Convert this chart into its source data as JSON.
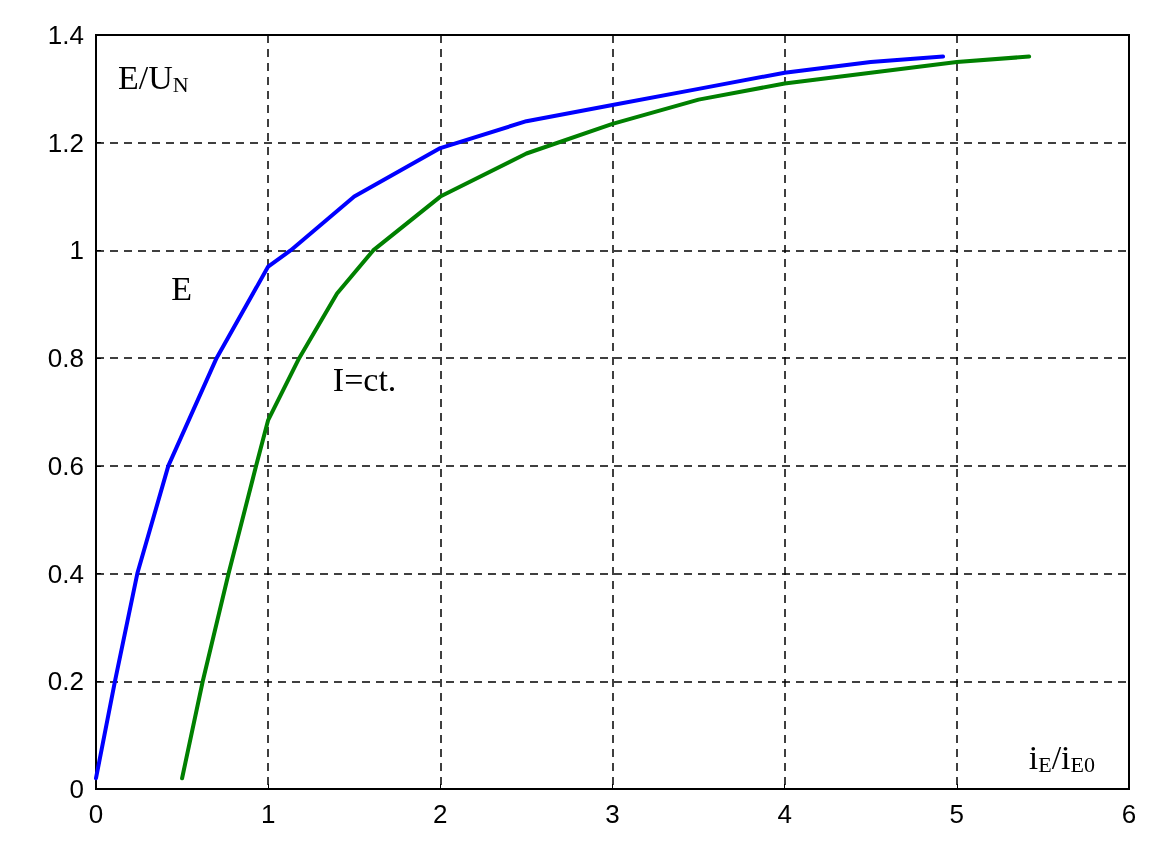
{
  "chart_data": {
    "type": "line",
    "xlabel": "i$_{E}$/i$_{E0}$",
    "ylabel": "E/U$_{N}$",
    "xlim": [
      0,
      6
    ],
    "xticks": [
      0,
      1,
      2,
      3,
      4,
      5,
      6
    ],
    "ylim": [
      0,
      1.4
    ],
    "yticks": [
      0,
      0.2,
      0.4,
      0.6,
      0.8,
      1,
      1.2,
      1.4
    ],
    "grid": true,
    "line_style": "solid",
    "marker": "none",
    "series": [
      {
        "color": "#0000ff",
        "x": [
          0,
          0.11,
          0.24,
          0.42,
          0.7,
          1,
          1.13,
          1.5,
          2,
          2.5,
          3,
          3.5,
          4,
          4.5,
          4.92
        ],
        "values": [
          0.02,
          0.2,
          0.4,
          0.6,
          0.8,
          0.97,
          1.0,
          1.1,
          1.19,
          1.24,
          1.27,
          1.3,
          1.33,
          1.35,
          1.36
        ]
      },
      {
        "color": "#008000",
        "x": [
          0.5,
          0.62,
          0.77,
          0.93,
          1,
          1.18,
          1.4,
          1.61,
          2,
          2.5,
          3,
          3.5,
          4,
          4.5,
          5,
          5.42
        ],
        "values": [
          0.02,
          0.2,
          0.4,
          0.6,
          0.685,
          0.8,
          0.92,
          1.0,
          1.1,
          1.18,
          1.235,
          1.28,
          1.31,
          1.33,
          1.35,
          1.36
        ]
      }
    ],
    "annotations": [
      "E",
      "I=ct."
    ]
  }
}
